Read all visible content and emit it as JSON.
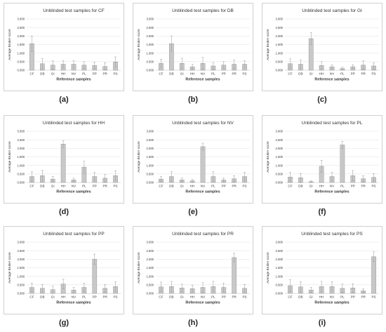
{
  "chart_data": [
    {
      "type": "bar",
      "title": "Unblinded test samples for CF",
      "caption": "(a)",
      "xlabel": "Reference samples",
      "ylabel": "Average Bruker score",
      "categories": [
        "CF",
        "DB",
        "GI",
        "HH",
        "NV",
        "PL",
        "PP",
        "PR",
        "PS"
      ],
      "values": [
        1.55,
        0.38,
        0.3,
        0.35,
        0.35,
        0.3,
        0.28,
        0.22,
        0.48
      ],
      "errors": [
        0.45,
        0.3,
        0.25,
        0.22,
        0.22,
        0.2,
        0.18,
        0.22,
        0.3
      ],
      "ylim": [
        0,
        3
      ],
      "yticks": [
        "0.000",
        "0.500",
        "1.000",
        "1.500",
        "2.000",
        "2.500",
        "3.000"
      ]
    },
    {
      "type": "bar",
      "title": "Unblinded test samples for DB",
      "caption": "(b)",
      "xlabel": "Reference samples",
      "ylabel": "Average Bruker score",
      "categories": [
        "CF",
        "DB",
        "GI",
        "HH",
        "NV",
        "PL",
        "PP",
        "PR",
        "PS"
      ],
      "values": [
        0.4,
        1.55,
        0.4,
        0.2,
        0.4,
        0.25,
        0.3,
        0.35,
        0.35
      ],
      "errors": [
        0.25,
        0.45,
        0.3,
        0.15,
        0.35,
        0.2,
        0.2,
        0.25,
        0.2
      ],
      "ylim": [
        0,
        3
      ],
      "yticks": [
        "0.000",
        "0.500",
        "1.000",
        "1.500",
        "2.000",
        "2.500",
        "3.000"
      ]
    },
    {
      "type": "bar",
      "title": "Unblinded test samples for GI",
      "caption": "(c)",
      "xlabel": "Reference samples",
      "ylabel": "Average Bruker score",
      "categories": [
        "CF",
        "DB",
        "GI",
        "HH",
        "NV",
        "PL",
        "PP",
        "PR",
        "PS"
      ],
      "values": [
        0.38,
        0.35,
        1.85,
        0.28,
        0.2,
        0.1,
        0.2,
        0.3,
        0.25
      ],
      "errors": [
        0.28,
        0.25,
        0.35,
        0.22,
        0.12,
        0.08,
        0.12,
        0.25,
        0.18
      ],
      "ylim": [
        0,
        3
      ],
      "yticks": [
        "0.000",
        "0.500",
        "1.000",
        "1.500",
        "2.000",
        "2.500",
        "3.000"
      ]
    },
    {
      "type": "bar",
      "title": "Unblinded test samples for HH",
      "caption": "(d)",
      "xlabel": "Reference samples",
      "ylabel": "Average Bruker score",
      "categories": [
        "CF",
        "DB",
        "GI",
        "HH",
        "NV",
        "PL",
        "PP",
        "PR",
        "PS"
      ],
      "values": [
        0.35,
        0.4,
        0.2,
        2.25,
        0.15,
        0.9,
        0.35,
        0.25,
        0.4
      ],
      "errors": [
        0.28,
        0.32,
        0.15,
        0.2,
        0.1,
        0.35,
        0.25,
        0.22,
        0.28
      ],
      "ylim": [
        0,
        3
      ],
      "yticks": [
        "0.000",
        "0.500",
        "1.000",
        "1.500",
        "2.000",
        "2.500",
        "3.000"
      ]
    },
    {
      "type": "bar",
      "title": "Unblinded test samples for NV",
      "caption": "(e)",
      "xlabel": "Reference samples",
      "ylabel": "Average Bruker score",
      "categories": [
        "CF",
        "DB",
        "GI",
        "HH",
        "NV",
        "PL",
        "PP",
        "PR",
        "PS"
      ],
      "values": [
        0.2,
        0.35,
        0.15,
        0.1,
        2.1,
        0.35,
        0.15,
        0.22,
        0.35
      ],
      "errors": [
        0.15,
        0.3,
        0.12,
        0.08,
        0.2,
        0.28,
        0.12,
        0.18,
        0.25
      ],
      "ylim": [
        0,
        3
      ],
      "yticks": [
        "0.000",
        "0.500",
        "1.000",
        "1.500",
        "2.000",
        "2.500",
        "3.000"
      ]
    },
    {
      "type": "bar",
      "title": "Unblinded test samples for PL",
      "caption": "(f)",
      "xlabel": "Reference samples",
      "ylabel": "Average Bruker score",
      "categories": [
        "CF",
        "DB",
        "GI",
        "HH",
        "NV",
        "PL",
        "PP",
        "PR",
        "PS"
      ],
      "values": [
        0.32,
        0.28,
        0.05,
        0.95,
        0.35,
        2.2,
        0.4,
        0.22,
        0.3
      ],
      "errors": [
        0.28,
        0.25,
        0.05,
        0.35,
        0.25,
        0.2,
        0.3,
        0.18,
        0.22
      ],
      "ylim": [
        0,
        3
      ],
      "yticks": [
        "0.000",
        "0.500",
        "1.000",
        "1.500",
        "2.000",
        "2.500",
        "3.000"
      ]
    },
    {
      "type": "bar",
      "title": "Unblinded test samples for PP",
      "caption": "(g)",
      "xlabel": "Reference samples",
      "ylabel": "Average Bruker score",
      "categories": [
        "CF",
        "DB",
        "GI",
        "HH",
        "NV",
        "PL",
        "PP",
        "PR",
        "PS"
      ],
      "values": [
        0.35,
        0.3,
        0.22,
        0.55,
        0.2,
        0.35,
        2.0,
        0.3,
        0.4
      ],
      "errors": [
        0.25,
        0.22,
        0.2,
        0.28,
        0.15,
        0.25,
        0.3,
        0.22,
        0.28
      ],
      "ylim": [
        0,
        3
      ],
      "yticks": [
        "0.000",
        "0.500",
        "1.000",
        "1.500",
        "2.000",
        "2.500",
        "3.000"
      ]
    },
    {
      "type": "bar",
      "title": "Unblinded test samples for PR",
      "caption": "(h)",
      "xlabel": "Reference samples",
      "ylabel": "Average Bruker score",
      "categories": [
        "CF",
        "DB",
        "GI",
        "HH",
        "NV",
        "PL",
        "PP",
        "PR",
        "PS"
      ],
      "values": [
        0.38,
        0.4,
        0.32,
        0.28,
        0.35,
        0.4,
        0.35,
        2.1,
        0.3
      ],
      "errors": [
        0.28,
        0.3,
        0.22,
        0.2,
        0.28,
        0.3,
        0.25,
        0.25,
        0.22
      ],
      "ylim": [
        0,
        3
      ],
      "yticks": [
        "0.000",
        "0.500",
        "1.000",
        "1.500",
        "2.000",
        "2.500",
        "3.000"
      ]
    },
    {
      "type": "bar",
      "title": "Unblinded test samples for PS",
      "caption": "(i)",
      "xlabel": "Reference samples",
      "ylabel": "Average Bruker score",
      "categories": [
        "CF",
        "DB",
        "GI",
        "HH",
        "NV",
        "PL",
        "PP",
        "PR",
        "PS"
      ],
      "values": [
        0.45,
        0.38,
        0.2,
        0.4,
        0.4,
        0.3,
        0.32,
        0.15,
        2.15
      ],
      "errors": [
        0.35,
        0.3,
        0.15,
        0.3,
        0.28,
        0.25,
        0.25,
        0.12,
        0.28
      ],
      "ylim": [
        0,
        3
      ],
      "yticks": [
        "0.000",
        "0.500",
        "1.000",
        "1.500",
        "2.000",
        "2.500",
        "3.000"
      ]
    }
  ],
  "colors": {
    "bar_fill": "#c8c8c8",
    "bar_stroke": "#8a8a8a",
    "error_bar": "#999999",
    "grid": "#e0e0e0",
    "text": "#333333"
  }
}
